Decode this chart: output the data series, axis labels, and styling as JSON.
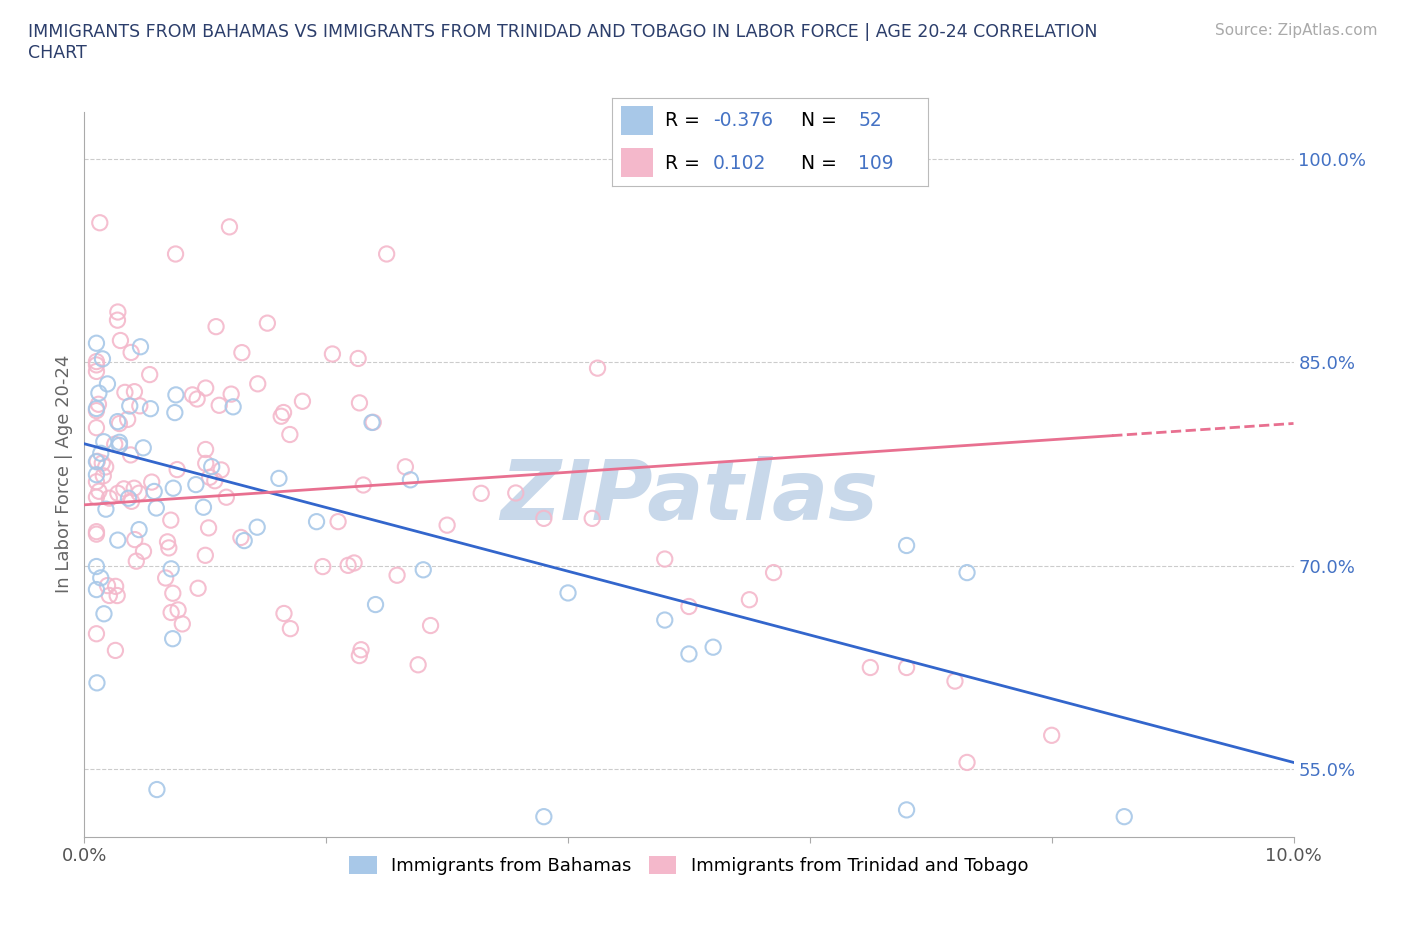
{
  "title": "IMMIGRANTS FROM BAHAMAS VS IMMIGRANTS FROM TRINIDAD AND TOBAGO IN LABOR FORCE | AGE 20-24 CORRELATION\nCHART",
  "source_text": "Source: ZipAtlas.com",
  "ylabel": "In Labor Force | Age 20-24",
  "x_min": 0.0,
  "x_max": 0.1,
  "y_min": 0.5,
  "y_max": 1.035,
  "bahamas_R": -0.376,
  "bahamas_N": 52,
  "tt_R": 0.102,
  "tt_N": 109,
  "bahamas_color": "#a8c8e8",
  "tt_color": "#f4b8cb",
  "bahamas_line_color": "#3366cc",
  "tt_line_color": "#e87090",
  "grid_color": "#cccccc",
  "background_color": "#ffffff",
  "watermark": "ZIPatlas",
  "watermark_color": "#c8d8ea",
  "legend_color": "#4472c4",
  "title_color": "#2c3e6b"
}
